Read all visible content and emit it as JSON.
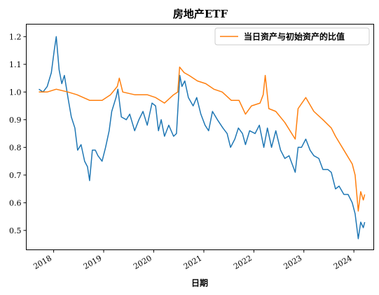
{
  "chart_data": {
    "type": "line",
    "title": "房地产ETF",
    "xlabel": "日期",
    "ylabel": "",
    "xlim": [
      "2017-06-15",
      "2024-05-25"
    ],
    "ylim": [
      0.43,
      1.245
    ],
    "legend": "top-right",
    "grid": false,
    "x_ticks": [
      {
        "label": "2018",
        "date": "2018-01-01"
      },
      {
        "label": "2019",
        "date": "2019-01-01"
      },
      {
        "label": "2020",
        "date": "2020-01-01"
      },
      {
        "label": "2021",
        "date": "2021-01-01"
      },
      {
        "label": "2022",
        "date": "2022-01-01"
      },
      {
        "label": "2023",
        "date": "2023-01-01"
      },
      {
        "label": "2024",
        "date": "2024-01-01"
      }
    ],
    "y_ticks": [
      0.5,
      0.6,
      0.7,
      0.8,
      0.9,
      1.0,
      1.1,
      1.2
    ],
    "series": [
      {
        "name": "",
        "color": "#1f77b4",
        "points": [
          [
            "2017-09-15",
            1.01
          ],
          [
            "2017-10-15",
            1.0
          ],
          [
            "2017-11-15",
            1.02
          ],
          [
            "2017-12-15",
            1.07
          ],
          [
            "2018-01-05",
            1.15
          ],
          [
            "2018-01-20",
            1.2
          ],
          [
            "2018-02-10",
            1.08
          ],
          [
            "2018-03-01",
            1.03
          ],
          [
            "2018-03-20",
            1.06
          ],
          [
            "2018-04-15",
            0.98
          ],
          [
            "2018-05-10",
            0.91
          ],
          [
            "2018-06-05",
            0.87
          ],
          [
            "2018-06-25",
            0.79
          ],
          [
            "2018-07-20",
            0.81
          ],
          [
            "2018-08-15",
            0.75
          ],
          [
            "2018-09-05",
            0.73
          ],
          [
            "2018-09-20",
            0.68
          ],
          [
            "2018-10-10",
            0.79
          ],
          [
            "2018-11-01",
            0.79
          ],
          [
            "2018-11-20",
            0.77
          ],
          [
            "2018-12-20",
            0.75
          ],
          [
            "2019-01-15",
            0.8
          ],
          [
            "2019-02-10",
            0.86
          ],
          [
            "2019-03-01",
            0.93
          ],
          [
            "2019-04-01",
            0.98
          ],
          [
            "2019-04-15",
            1.01
          ],
          [
            "2019-05-10",
            0.91
          ],
          [
            "2019-06-15",
            0.9
          ],
          [
            "2019-07-10",
            0.92
          ],
          [
            "2019-08-15",
            0.86
          ],
          [
            "2019-09-15",
            0.9
          ],
          [
            "2019-10-15",
            0.93
          ],
          [
            "2019-11-15",
            0.88
          ],
          [
            "2019-12-20",
            0.96
          ],
          [
            "2020-01-15",
            0.95
          ],
          [
            "2020-02-05",
            0.86
          ],
          [
            "2020-02-25",
            0.9
          ],
          [
            "2020-03-20",
            0.84
          ],
          [
            "2020-04-20",
            0.88
          ],
          [
            "2020-05-25",
            0.84
          ],
          [
            "2020-06-15",
            0.85
          ],
          [
            "2020-07-10",
            1.06
          ],
          [
            "2020-07-25",
            1.02
          ],
          [
            "2020-08-15",
            1.04
          ],
          [
            "2020-09-10",
            0.98
          ],
          [
            "2020-10-15",
            0.95
          ],
          [
            "2020-11-10",
            0.98
          ],
          [
            "2020-12-10",
            0.92
          ],
          [
            "2021-01-10",
            0.88
          ],
          [
            "2021-02-05",
            0.86
          ],
          [
            "2021-03-05",
            0.93
          ],
          [
            "2021-04-10",
            0.9
          ],
          [
            "2021-05-20",
            0.87
          ],
          [
            "2021-06-20",
            0.85
          ],
          [
            "2021-07-15",
            0.8
          ],
          [
            "2021-08-15",
            0.83
          ],
          [
            "2021-09-10",
            0.87
          ],
          [
            "2021-10-10",
            0.85
          ],
          [
            "2021-11-01",
            0.81
          ],
          [
            "2021-12-01",
            0.86
          ],
          [
            "2022-01-10",
            0.85
          ],
          [
            "2022-02-10",
            0.88
          ],
          [
            "2022-03-15",
            0.8
          ],
          [
            "2022-04-10",
            0.87
          ],
          [
            "2022-05-10",
            0.8
          ],
          [
            "2022-06-10",
            0.86
          ],
          [
            "2022-07-15",
            0.79
          ],
          [
            "2022-08-15",
            0.76
          ],
          [
            "2022-09-15",
            0.77
          ],
          [
            "2022-10-30",
            0.71
          ],
          [
            "2022-11-20",
            0.8
          ],
          [
            "2022-12-15",
            0.8
          ],
          [
            "2023-01-15",
            0.83
          ],
          [
            "2023-02-15",
            0.79
          ],
          [
            "2023-03-15",
            0.77
          ],
          [
            "2023-04-20",
            0.76
          ],
          [
            "2023-05-20",
            0.72
          ],
          [
            "2023-06-25",
            0.72
          ],
          [
            "2023-07-20",
            0.71
          ],
          [
            "2023-08-20",
            0.65
          ],
          [
            "2023-09-15",
            0.66
          ],
          [
            "2023-10-20",
            0.63
          ],
          [
            "2023-11-20",
            0.63
          ],
          [
            "2023-12-20",
            0.6
          ],
          [
            "2024-01-10",
            0.56
          ],
          [
            "2024-02-02",
            0.47
          ],
          [
            "2024-02-20",
            0.53
          ],
          [
            "2024-03-10",
            0.51
          ],
          [
            "2024-03-20",
            0.53
          ]
        ]
      },
      {
        "name": "当日资产与初始资产的比值",
        "color": "#ff7f0e",
        "points": [
          [
            "2017-09-15",
            1.0
          ],
          [
            "2017-11-15",
            1.0
          ],
          [
            "2018-01-20",
            1.01
          ],
          [
            "2018-04-15",
            1.0
          ],
          [
            "2018-06-20",
            0.99
          ],
          [
            "2018-09-20",
            0.97
          ],
          [
            "2018-12-20",
            0.97
          ],
          [
            "2019-02-20",
            0.99
          ],
          [
            "2019-04-10",
            1.02
          ],
          [
            "2019-04-25",
            1.05
          ],
          [
            "2019-05-20",
            1.0
          ],
          [
            "2019-08-15",
            0.99
          ],
          [
            "2019-11-15",
            0.99
          ],
          [
            "2020-01-15",
            0.98
          ],
          [
            "2020-03-20",
            0.96
          ],
          [
            "2020-05-25",
            0.99
          ],
          [
            "2020-06-25",
            1.0
          ],
          [
            "2020-07-08",
            1.09
          ],
          [
            "2020-08-10",
            1.07
          ],
          [
            "2020-09-15",
            1.06
          ],
          [
            "2020-11-15",
            1.04
          ],
          [
            "2021-01-15",
            1.03
          ],
          [
            "2021-03-15",
            1.01
          ],
          [
            "2021-05-15",
            1.0
          ],
          [
            "2021-07-20",
            0.97
          ],
          [
            "2021-09-15",
            0.97
          ],
          [
            "2021-11-01",
            0.92
          ],
          [
            "2021-12-15",
            0.95
          ],
          [
            "2022-02-15",
            0.96
          ],
          [
            "2022-03-10",
            0.99
          ],
          [
            "2022-03-25",
            1.06
          ],
          [
            "2022-04-20",
            0.94
          ],
          [
            "2022-06-10",
            0.93
          ],
          [
            "2022-08-15",
            0.89
          ],
          [
            "2022-10-30",
            0.83
          ],
          [
            "2022-11-20",
            0.94
          ],
          [
            "2023-01-15",
            0.98
          ],
          [
            "2023-03-15",
            0.93
          ],
          [
            "2023-05-20",
            0.9
          ],
          [
            "2023-07-20",
            0.87
          ],
          [
            "2023-08-20",
            0.84
          ],
          [
            "2023-10-20",
            0.79
          ],
          [
            "2023-12-20",
            0.74
          ],
          [
            "2024-01-10",
            0.7
          ],
          [
            "2024-02-02",
            0.57
          ],
          [
            "2024-02-20",
            0.64
          ],
          [
            "2024-03-10",
            0.61
          ],
          [
            "2024-03-20",
            0.63
          ]
        ]
      }
    ]
  }
}
